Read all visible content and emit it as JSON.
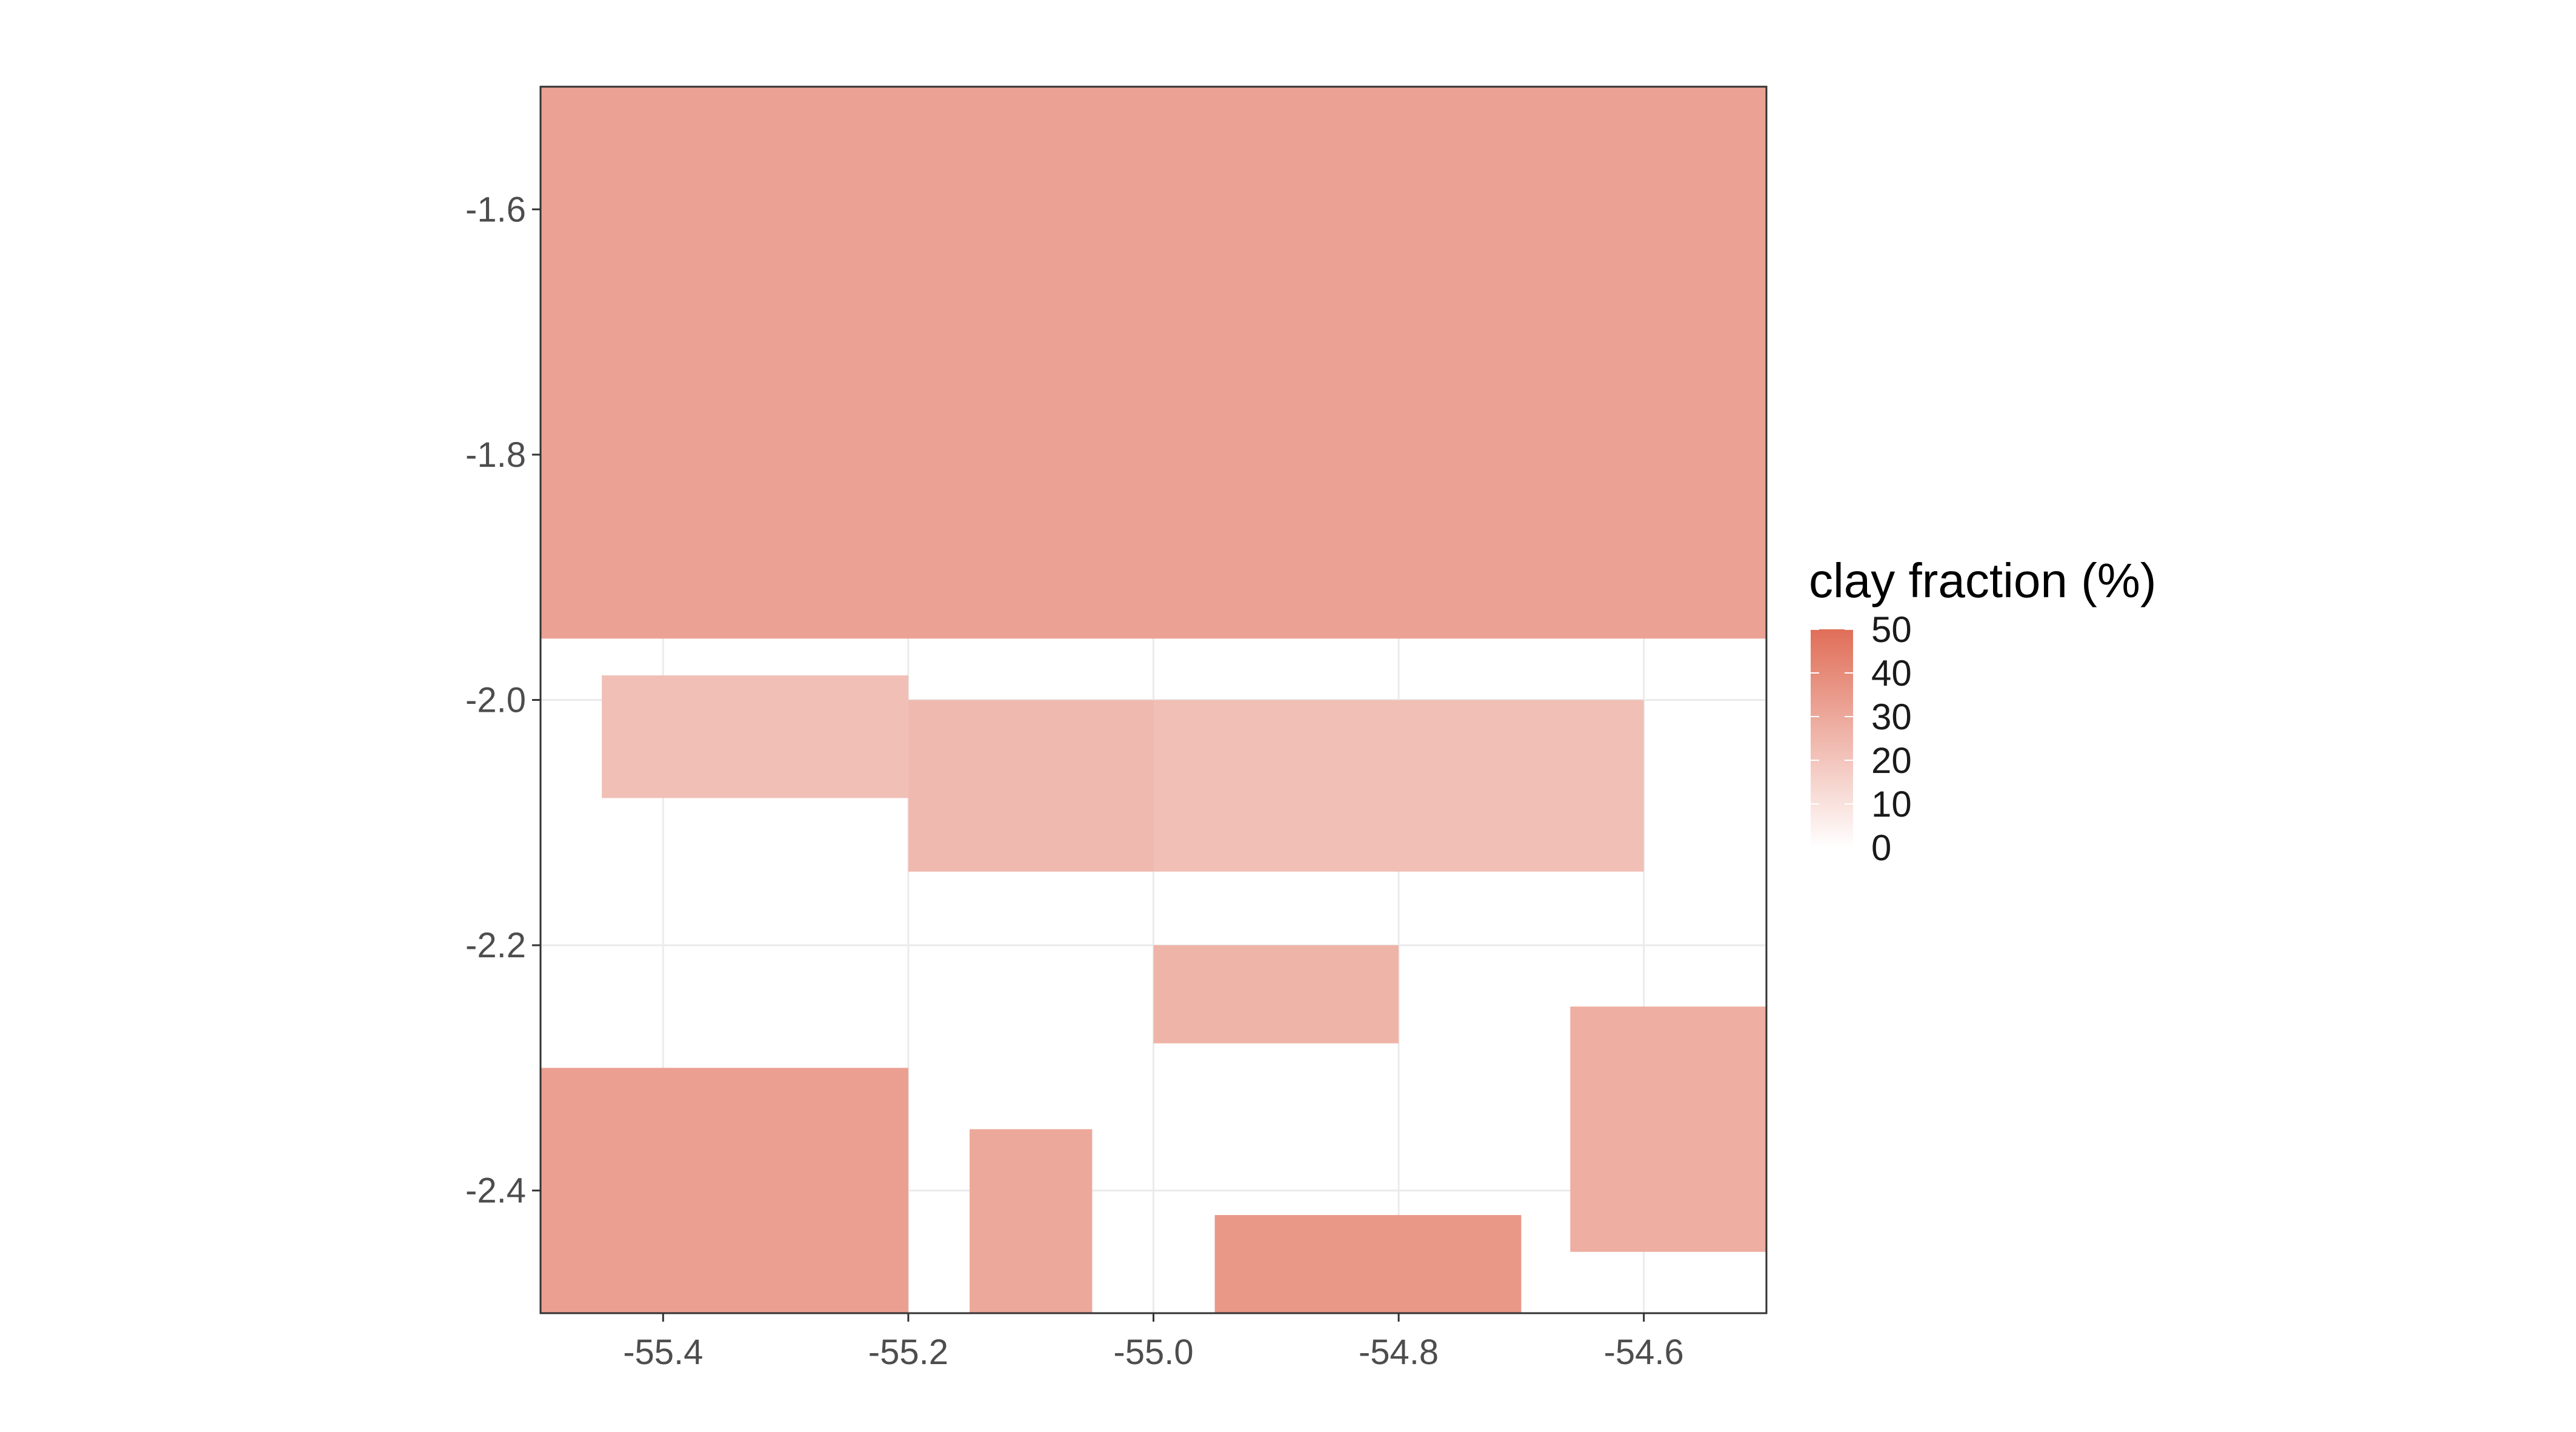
{
  "chart_data": {
    "type": "heatmap",
    "title": "",
    "xlabel": "",
    "ylabel": "",
    "xlim": [
      -55.5,
      -54.5
    ],
    "ylim": [
      -2.5,
      -1.5
    ],
    "x_ticks": [
      -55.4,
      -55.2,
      -55.0,
      -54.8,
      -54.6
    ],
    "x_tick_labels": [
      "-55.4",
      "-55.2",
      "-55.0",
      "-54.8",
      "-54.6"
    ],
    "y_ticks": [
      -1.6,
      -1.8,
      -2.0,
      -2.2,
      -2.4
    ],
    "y_tick_labels": [
      "-1.6",
      "-1.8",
      "-2.0",
      "-2.2",
      "-2.4"
    ],
    "grid": true,
    "legend": {
      "title": "clay fraction (%)",
      "position": "right",
      "range": [
        0,
        50
      ],
      "ticks": [
        50,
        40,
        30,
        20,
        10,
        0
      ],
      "tick_labels": [
        "50",
        "40",
        "30",
        "20",
        "10",
        "0"
      ],
      "color_low": "#ffffff",
      "color_high": "#e06e58"
    },
    "regions": [
      {
        "x": [
          -55.5,
          -54.5
        ],
        "y": [
          -1.95,
          -1.5
        ],
        "value": 32
      },
      {
        "x": [
          -55.5,
          -55.2
        ],
        "y": [
          -2.5,
          -2.3
        ],
        "value": 33
      },
      {
        "x": [
          -55.15,
          -55.05
        ],
        "y": [
          -2.5,
          -2.35
        ],
        "value": 30
      },
      {
        "x": [
          -54.95,
          -54.7
        ],
        "y": [
          -2.5,
          -2.42
        ],
        "value": 36
      },
      {
        "x": [
          -55.45,
          -55.2
        ],
        "y": [
          -2.08,
          -1.98
        ],
        "value": 22
      },
      {
        "x": [
          -55.2,
          -55.0
        ],
        "y": [
          -2.14,
          -2.0
        ],
        "value": 24
      },
      {
        "x": [
          -55.0,
          -54.6
        ],
        "y": [
          -2.14,
          -2.0
        ],
        "value": 22
      },
      {
        "x": [
          -55.0,
          -54.8
        ],
        "y": [
          -2.28,
          -2.2
        ],
        "value": 26
      },
      {
        "x": [
          -54.66,
          -54.5
        ],
        "y": [
          -2.45,
          -2.25
        ],
        "value": 28
      }
    ]
  }
}
